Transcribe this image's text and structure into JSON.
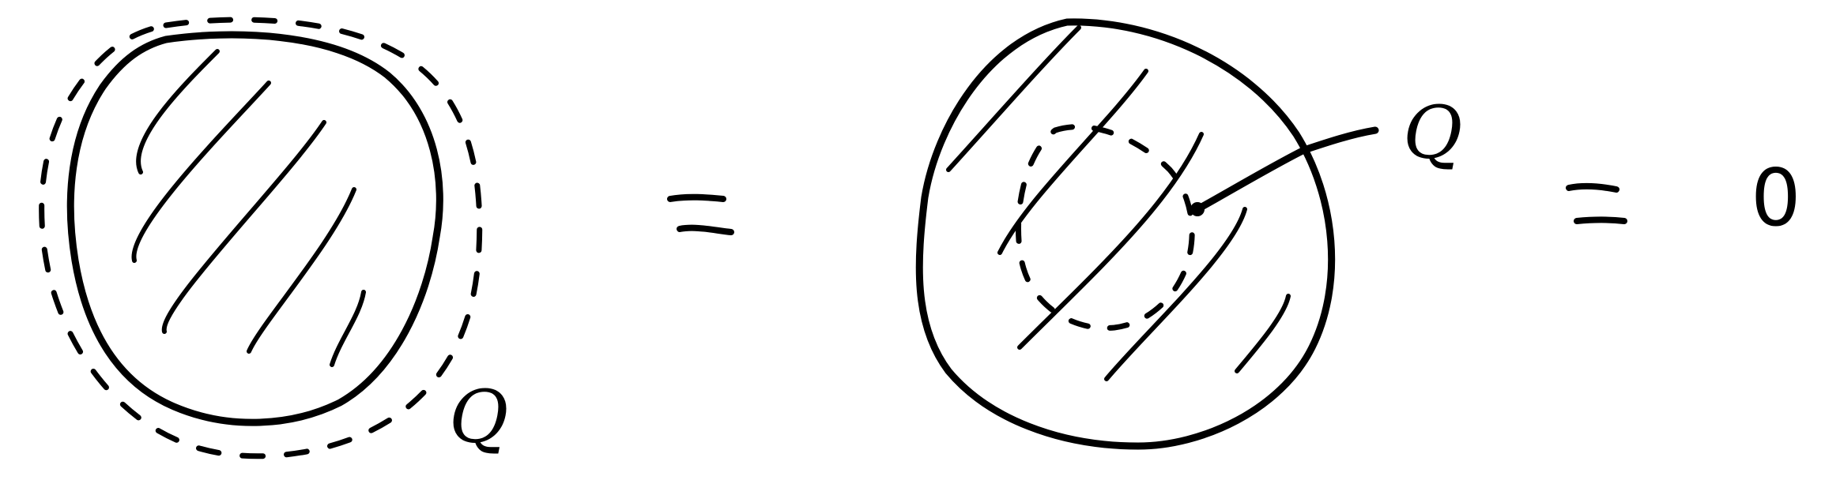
{
  "diagram": {
    "left_charge_label": "Q",
    "right_charge_label": "Q",
    "result": "0",
    "colors": {
      "ink": "#000000",
      "background": "#ffffff"
    }
  }
}
